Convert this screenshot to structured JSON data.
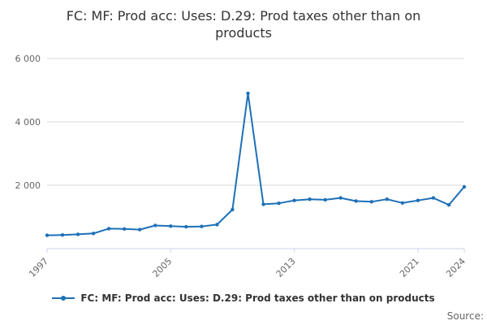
{
  "chart_data": {
    "type": "line",
    "title": "FC: MF: Prod acc: Uses: D.29: Prod taxes other than on products",
    "x": [
      1997,
      1998,
      1999,
      2000,
      2001,
      2002,
      2003,
      2004,
      2005,
      2006,
      2007,
      2008,
      2009,
      2010,
      2011,
      2012,
      2013,
      2014,
      2015,
      2016,
      2017,
      2018,
      2019,
      2020,
      2021,
      2022,
      2023,
      2024
    ],
    "series": [
      {
        "name": "FC: MF: Prod acc: Uses: D.29: Prod taxes other than on products",
        "color": "#1d70b8",
        "values": [
          420,
          430,
          450,
          480,
          630,
          620,
          600,
          730,
          710,
          690,
          700,
          760,
          1230,
          4900,
          1400,
          1430,
          1520,
          1560,
          1540,
          1600,
          1500,
          1480,
          1560,
          1440,
          1520,
          1600,
          1380,
          1950
        ]
      }
    ],
    "ylim": [
      0,
      6000
    ],
    "yticks": [
      {
        "value": 2000,
        "label": "2 000"
      },
      {
        "value": 4000,
        "label": "4 000"
      },
      {
        "value": 6000,
        "label": "6 000"
      }
    ],
    "xticks": [
      1997,
      2005,
      2013,
      2021,
      2024
    ],
    "grid": true,
    "grid_color": "#d8d8d8",
    "axis_line_color": "#ccd6eb",
    "tick_label_color": "#666666",
    "legend_position": "bottom"
  },
  "footer": {
    "source_label": "Source:"
  }
}
